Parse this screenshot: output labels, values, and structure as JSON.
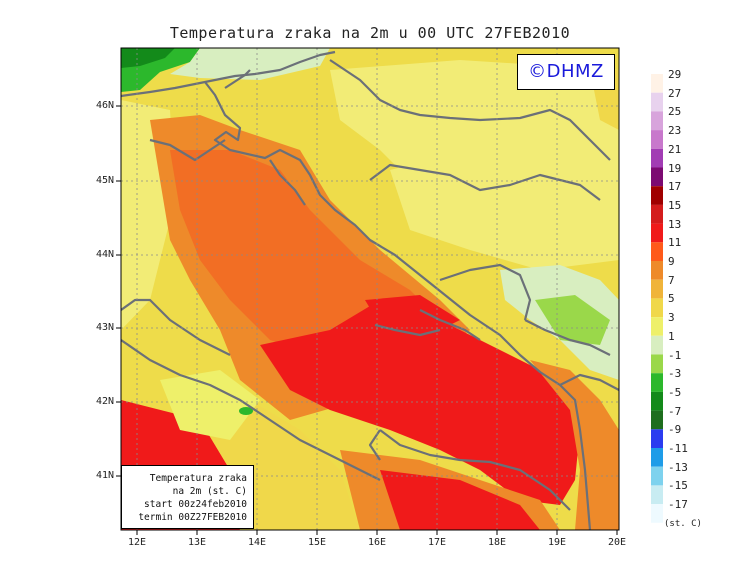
{
  "title": "Temperatura zraka na 2m u 00 UTC 27FEB2010",
  "logo": "©DHMZ",
  "info": {
    "line1": "Temperatura zraka",
    "line2": "na 2m (st. C)",
    "line3": "start 00z24feb2010",
    "line4": "termin 00Z27FEB2010"
  },
  "lat_labels": [
    "46N",
    "45N",
    "44N",
    "43N",
    "42N",
    "41N"
  ],
  "lon_labels": [
    "12E",
    "13E",
    "14E",
    "15E",
    "16E",
    "17E",
    "18E",
    "19E",
    "20E"
  ],
  "legend": {
    "units": "(st. C)",
    "labels": [
      "29",
      "27",
      "25",
      "23",
      "21",
      "19",
      "17",
      "15",
      "13",
      "11",
      "9",
      "7",
      "5",
      "3",
      "1",
      "-1",
      "-3",
      "-5",
      "-7",
      "-9",
      "-11",
      "-13",
      "-15",
      "-17"
    ],
    "colors": [
      "#fff2e6",
      "#e8d2ee",
      "#d8a4dc",
      "#c878cc",
      "#a23cb4",
      "#7c0a72",
      "#a00000",
      "#d41c1c",
      "#f01a1a",
      "#ff5a1a",
      "#ee8a2a",
      "#f0b43a",
      "#f0d84a",
      "#eef06a",
      "#d8eec0",
      "#9ad84a",
      "#2cb82c",
      "#138a1a",
      "#1e6e1e",
      "#2b3cf0",
      "#1e9ce8",
      "#7ed2ee",
      "#c8ecf2",
      "#eefaff"
    ]
  },
  "colors": {
    "land_yellow": "#eedc4a",
    "land_light": "#f2ec76",
    "sea_orange": "#ee8a2a",
    "sea_deep": "#f26e24",
    "sea_red": "#f01a1a",
    "green": "#2cb82c",
    "coast": "#6b7078"
  }
}
